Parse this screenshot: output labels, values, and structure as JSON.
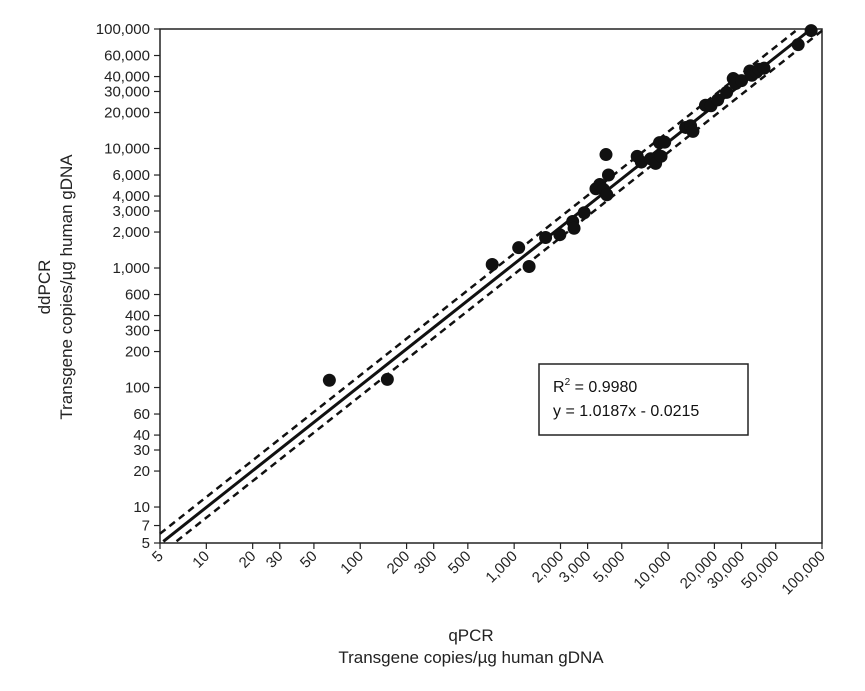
{
  "chart_data": {
    "type": "scatter",
    "xscale": "log",
    "yscale": "log",
    "xlim": [
      5,
      100000
    ],
    "ylim": [
      5,
      100000
    ],
    "x_ticks": [
      5,
      10,
      20,
      30,
      50,
      100,
      200,
      300,
      500,
      1000,
      2000,
      3000,
      5000,
      10000,
      20000,
      30000,
      50000,
      100000
    ],
    "x_tick_labels": [
      "5",
      "10",
      "20",
      "30",
      "50",
      "100",
      "200",
      "300",
      "500",
      "1,000",
      "2,000",
      "3,000",
      "5,000",
      "10,000",
      "20,000",
      "30,000",
      "50,000",
      "100,000"
    ],
    "y_ticks": [
      5,
      7,
      10,
      20,
      30,
      40,
      60,
      100,
      200,
      300,
      400,
      600,
      1000,
      2000,
      3000,
      4000,
      6000,
      10000,
      20000,
      30000,
      40000,
      60000,
      100000
    ],
    "y_tick_labels": [
      "5",
      "7",
      "10",
      "20",
      "30",
      "40",
      "60",
      "100",
      "200",
      "300",
      "400",
      "600",
      "1,000",
      "2,000",
      "3,000",
      "4,000",
      "6,000",
      "10,000",
      "20,000",
      "30,000",
      "40,000",
      "60,000",
      "100,000"
    ],
    "xlabel": [
      "qPCR",
      "Transgene copies/µg human gDNA"
    ],
    "ylabel": [
      "ddPCR",
      "Transgene copies/µg human gDNA"
    ],
    "annotation": {
      "r2_prefix": "R",
      "r2_sup": "2",
      "r2_rest": " = 0.9980",
      "equation": "y = 1.0187x  -  0.0215"
    },
    "fit": {
      "slope": 1.0187,
      "intercept": -0.0215
    },
    "points": [
      {
        "x": 63,
        "y": 115
      },
      {
        "x": 150,
        "y": 117
      },
      {
        "x": 720,
        "y": 1070
      },
      {
        "x": 1070,
        "y": 1480
      },
      {
        "x": 1250,
        "y": 1030
      },
      {
        "x": 1600,
        "y": 1800
      },
      {
        "x": 1980,
        "y": 1900
      },
      {
        "x": 2400,
        "y": 2450
      },
      {
        "x": 2450,
        "y": 2150
      },
      {
        "x": 2850,
        "y": 2900
      },
      {
        "x": 3400,
        "y": 4600
      },
      {
        "x": 3600,
        "y": 5000
      },
      {
        "x": 3800,
        "y": 4550
      },
      {
        "x": 3950,
        "y": 8900
      },
      {
        "x": 4000,
        "y": 4100
      },
      {
        "x": 4100,
        "y": 6000
      },
      {
        "x": 6300,
        "y": 8600
      },
      {
        "x": 6700,
        "y": 7700
      },
      {
        "x": 7700,
        "y": 8200
      },
      {
        "x": 8300,
        "y": 7500
      },
      {
        "x": 8800,
        "y": 11200
      },
      {
        "x": 9000,
        "y": 8600
      },
      {
        "x": 9500,
        "y": 11300
      },
      {
        "x": 13000,
        "y": 15000
      },
      {
        "x": 14000,
        "y": 15500
      },
      {
        "x": 14500,
        "y": 13900
      },
      {
        "x": 17500,
        "y": 23000
      },
      {
        "x": 19000,
        "y": 22800
      },
      {
        "x": 21000,
        "y": 25500
      },
      {
        "x": 24000,
        "y": 29500
      },
      {
        "x": 26500,
        "y": 38500
      },
      {
        "x": 27500,
        "y": 35000
      },
      {
        "x": 30000,
        "y": 37000
      },
      {
        "x": 34000,
        "y": 44500
      },
      {
        "x": 35000,
        "y": 41000
      },
      {
        "x": 37500,
        "y": 43500
      },
      {
        "x": 39000,
        "y": 46000
      },
      {
        "x": 42000,
        "y": 47000
      },
      {
        "x": 70000,
        "y": 74000
      },
      {
        "x": 85000,
        "y": 97000
      }
    ],
    "confidence_band_factor": 1.22,
    "colors": {
      "points": "#111111",
      "line": "#111111",
      "background": "#ffffff"
    }
  }
}
